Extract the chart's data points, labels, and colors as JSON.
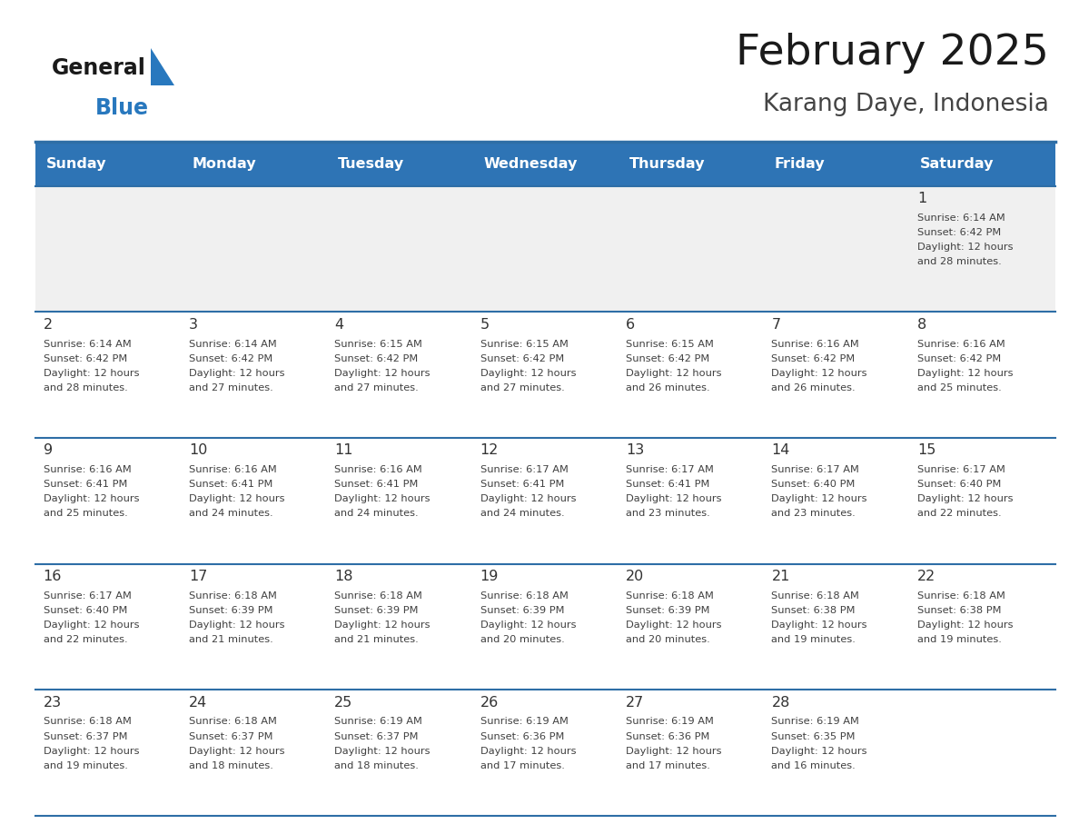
{
  "title": "February 2025",
  "subtitle": "Karang Daye, Indonesia",
  "days_of_week": [
    "Sunday",
    "Monday",
    "Tuesday",
    "Wednesday",
    "Thursday",
    "Friday",
    "Saturday"
  ],
  "header_bg": "#2E74B5",
  "header_text": "#FFFFFF",
  "cell_bg_white": "#FFFFFF",
  "cell_bg_gray": "#F0F0F0",
  "border_color": "#2E6EA6",
  "text_color": "#404040",
  "day_num_color": "#333333",
  "title_color": "#1a1a1a",
  "subtitle_color": "#444444",
  "logo_text_color": "#1a1a1a",
  "logo_blue_color": "#2878BE",
  "calendar": [
    [
      null,
      null,
      null,
      null,
      null,
      null,
      {
        "day": 1,
        "sunrise": "6:14 AM",
        "sunset": "6:42 PM",
        "daylight": "12 hours and 28 minutes."
      }
    ],
    [
      {
        "day": 2,
        "sunrise": "6:14 AM",
        "sunset": "6:42 PM",
        "daylight": "12 hours and 28 minutes."
      },
      {
        "day": 3,
        "sunrise": "6:14 AM",
        "sunset": "6:42 PM",
        "daylight": "12 hours and 27 minutes."
      },
      {
        "day": 4,
        "sunrise": "6:15 AM",
        "sunset": "6:42 PM",
        "daylight": "12 hours and 27 minutes."
      },
      {
        "day": 5,
        "sunrise": "6:15 AM",
        "sunset": "6:42 PM",
        "daylight": "12 hours and 27 minutes."
      },
      {
        "day": 6,
        "sunrise": "6:15 AM",
        "sunset": "6:42 PM",
        "daylight": "12 hours and 26 minutes."
      },
      {
        "day": 7,
        "sunrise": "6:16 AM",
        "sunset": "6:42 PM",
        "daylight": "12 hours and 26 minutes."
      },
      {
        "day": 8,
        "sunrise": "6:16 AM",
        "sunset": "6:42 PM",
        "daylight": "12 hours and 25 minutes."
      }
    ],
    [
      {
        "day": 9,
        "sunrise": "6:16 AM",
        "sunset": "6:41 PM",
        "daylight": "12 hours and 25 minutes."
      },
      {
        "day": 10,
        "sunrise": "6:16 AM",
        "sunset": "6:41 PM",
        "daylight": "12 hours and 24 minutes."
      },
      {
        "day": 11,
        "sunrise": "6:16 AM",
        "sunset": "6:41 PM",
        "daylight": "12 hours and 24 minutes."
      },
      {
        "day": 12,
        "sunrise": "6:17 AM",
        "sunset": "6:41 PM",
        "daylight": "12 hours and 24 minutes."
      },
      {
        "day": 13,
        "sunrise": "6:17 AM",
        "sunset": "6:41 PM",
        "daylight": "12 hours and 23 minutes."
      },
      {
        "day": 14,
        "sunrise": "6:17 AM",
        "sunset": "6:40 PM",
        "daylight": "12 hours and 23 minutes."
      },
      {
        "day": 15,
        "sunrise": "6:17 AM",
        "sunset": "6:40 PM",
        "daylight": "12 hours and 22 minutes."
      }
    ],
    [
      {
        "day": 16,
        "sunrise": "6:17 AM",
        "sunset": "6:40 PM",
        "daylight": "12 hours and 22 minutes."
      },
      {
        "day": 17,
        "sunrise": "6:18 AM",
        "sunset": "6:39 PM",
        "daylight": "12 hours and 21 minutes."
      },
      {
        "day": 18,
        "sunrise": "6:18 AM",
        "sunset": "6:39 PM",
        "daylight": "12 hours and 21 minutes."
      },
      {
        "day": 19,
        "sunrise": "6:18 AM",
        "sunset": "6:39 PM",
        "daylight": "12 hours and 20 minutes."
      },
      {
        "day": 20,
        "sunrise": "6:18 AM",
        "sunset": "6:39 PM",
        "daylight": "12 hours and 20 minutes."
      },
      {
        "day": 21,
        "sunrise": "6:18 AM",
        "sunset": "6:38 PM",
        "daylight": "12 hours and 19 minutes."
      },
      {
        "day": 22,
        "sunrise": "6:18 AM",
        "sunset": "6:38 PM",
        "daylight": "12 hours and 19 minutes."
      }
    ],
    [
      {
        "day": 23,
        "sunrise": "6:18 AM",
        "sunset": "6:37 PM",
        "daylight": "12 hours and 19 minutes."
      },
      {
        "day": 24,
        "sunrise": "6:18 AM",
        "sunset": "6:37 PM",
        "daylight": "12 hours and 18 minutes."
      },
      {
        "day": 25,
        "sunrise": "6:19 AM",
        "sunset": "6:37 PM",
        "daylight": "12 hours and 18 minutes."
      },
      {
        "day": 26,
        "sunrise": "6:19 AM",
        "sunset": "6:36 PM",
        "daylight": "12 hours and 17 minutes."
      },
      {
        "day": 27,
        "sunrise": "6:19 AM",
        "sunset": "6:36 PM",
        "daylight": "12 hours and 17 minutes."
      },
      {
        "day": 28,
        "sunrise": "6:19 AM",
        "sunset": "6:35 PM",
        "daylight": "12 hours and 16 minutes."
      },
      null
    ]
  ]
}
